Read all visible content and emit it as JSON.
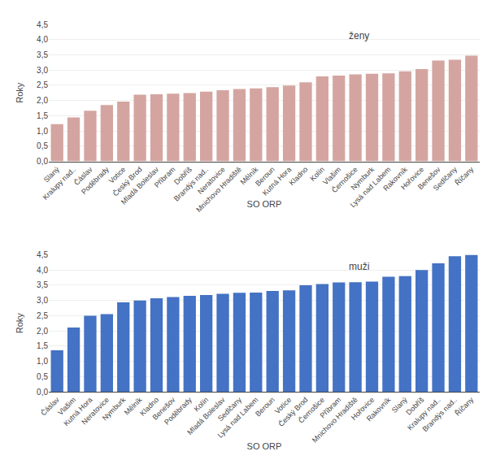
{
  "chart_data": [
    {
      "type": "bar",
      "title": "ženy",
      "categories": [
        "Slaný",
        "Kralupy nad..",
        "Čáslav",
        "Poděbrady",
        "Votice",
        "Český Brod",
        "Mladá Boleslav",
        "Příbram",
        "Dobříš",
        "Brandýs nad..",
        "Neratovice",
        "Mnichovo Hradiště",
        "Mělník",
        "Beroun",
        "Kutná Hora",
        "Kladno",
        "Kolín",
        "Vlašim",
        "Černošice",
        "Nymburk",
        "Lysá nad Labem",
        "Rakovník",
        "Hořovice",
        "Benešov",
        "Sedlčany",
        "Říčany"
      ],
      "values": [
        1.22,
        1.44,
        1.66,
        1.85,
        1.96,
        2.19,
        2.2,
        2.22,
        2.24,
        2.29,
        2.34,
        2.38,
        2.4,
        2.44,
        2.49,
        2.6,
        2.79,
        2.82,
        2.86,
        2.88,
        2.89,
        2.96,
        3.03,
        3.31,
        3.34,
        3.47
      ],
      "color": "#D4A5A0",
      "xlabel": "SO ORP",
      "ylabel": "Roky",
      "ylim": [
        0.0,
        4.5
      ],
      "yticks": [
        {
          "value": 0.0,
          "label": "0,0"
        },
        {
          "value": 0.5,
          "label": "0,5"
        },
        {
          "value": 1.0,
          "label": "1,0"
        },
        {
          "value": 1.5,
          "label": "1,5"
        },
        {
          "value": 2.0,
          "label": "2,0"
        },
        {
          "value": 2.5,
          "label": "2,5"
        },
        {
          "value": 3.0,
          "label": "3,0"
        },
        {
          "value": 3.5,
          "label": "3,5"
        },
        {
          "value": 4.0,
          "label": "4,0"
        },
        {
          "value": 4.5,
          "label": "4,5"
        }
      ],
      "grid": true
    },
    {
      "type": "bar",
      "title": "muži",
      "categories": [
        "Čáslav",
        "Vlašim",
        "Kutná Hora",
        "Neratovice",
        "Nymburk",
        "Mělník",
        "Kladno",
        "Benešov",
        "Poděbrady",
        "Kolín",
        "Mladá Boleslav",
        "Sedlčany",
        "Lysá nad Labem",
        "Beroun",
        "Votice",
        "Český Brod",
        "Černošice",
        "Příbram",
        "Mnichovo Hradiště",
        "Hořovice",
        "Rakovník",
        "Slaný",
        "Dobříš",
        "Kralupy nad..",
        "Brandýs nad..",
        "Říčany"
      ],
      "values": [
        1.36,
        2.11,
        2.5,
        2.55,
        2.94,
        3.0,
        3.07,
        3.11,
        3.15,
        3.18,
        3.22,
        3.25,
        3.26,
        3.31,
        3.33,
        3.5,
        3.54,
        3.59,
        3.6,
        3.62,
        3.78,
        3.8,
        4.0,
        4.22,
        4.45,
        4.5
      ],
      "color": "#4472C4",
      "xlabel": "SO ORP",
      "ylabel": "Roky",
      "ylim": [
        0.0,
        4.5
      ],
      "yticks": [
        {
          "value": 0.0,
          "label": "0,0"
        },
        {
          "value": 0.5,
          "label": "0,5"
        },
        {
          "value": 1.0,
          "label": "1,0"
        },
        {
          "value": 1.5,
          "label": "1,5"
        },
        {
          "value": 2.0,
          "label": "2,0"
        },
        {
          "value": 2.5,
          "label": "2,5"
        },
        {
          "value": 3.0,
          "label": "3,0"
        },
        {
          "value": 3.5,
          "label": "3,5"
        },
        {
          "value": 4.0,
          "label": "4,0"
        },
        {
          "value": 4.5,
          "label": "4,5"
        }
      ],
      "grid": true
    }
  ]
}
